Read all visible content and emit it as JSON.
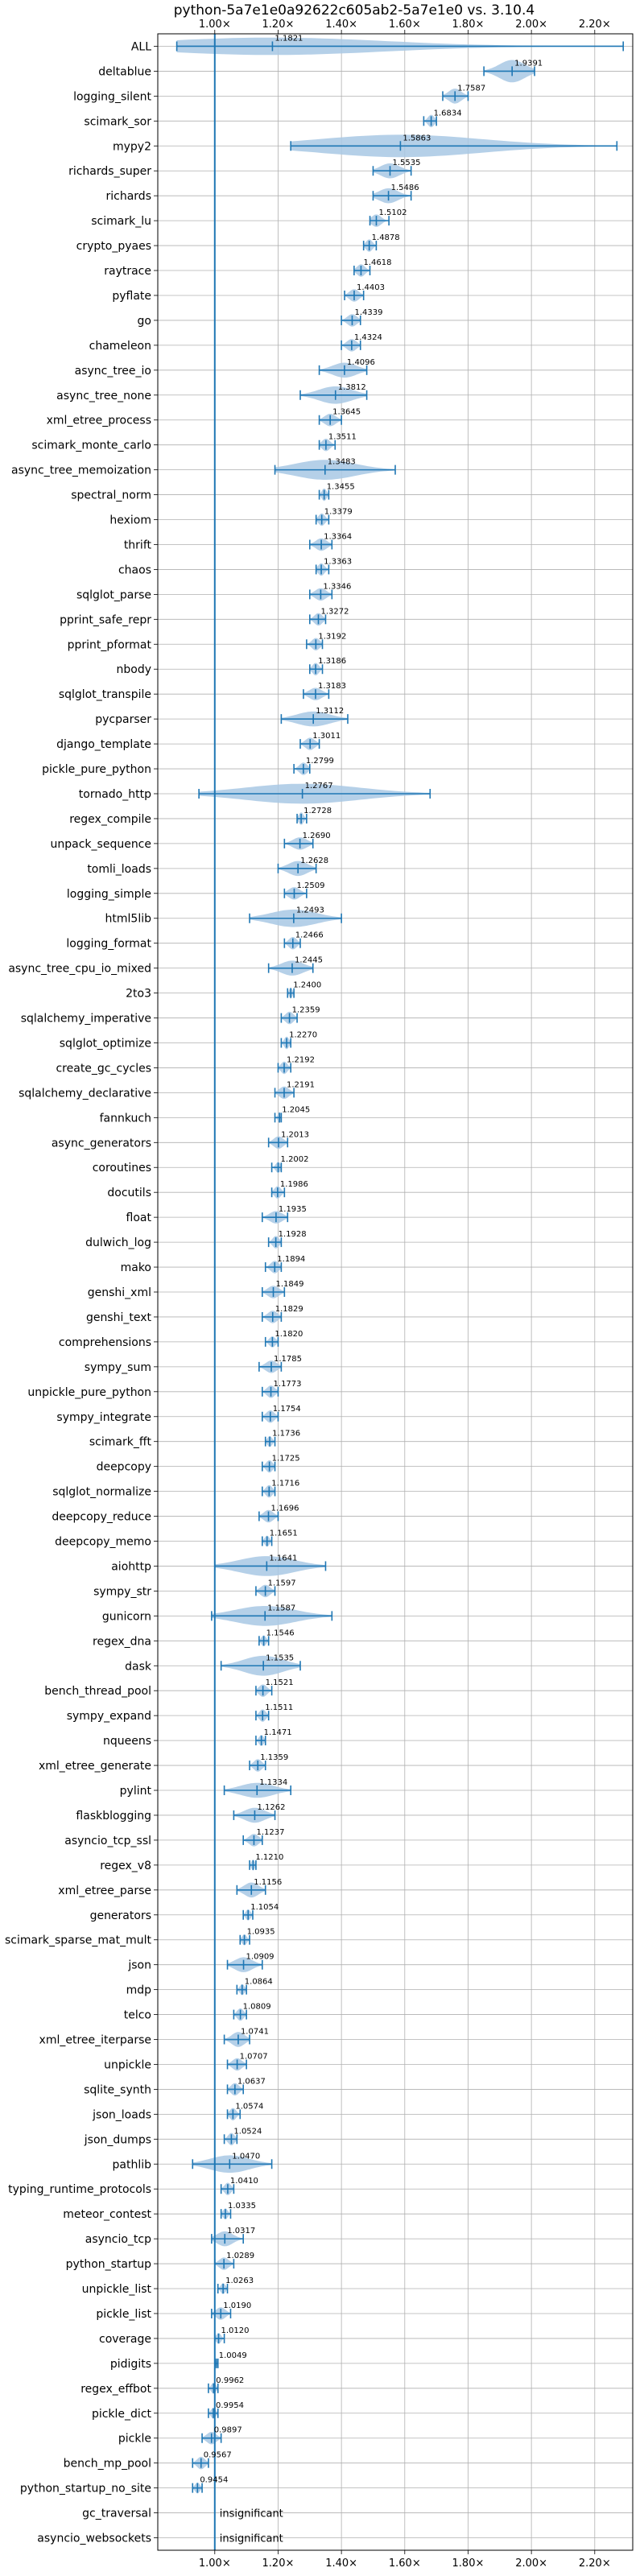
{
  "chart_data": {
    "type": "violin",
    "title": "python-5a7e1e0a92622c605ab2-5a7e1e0 vs. 3.10.4",
    "xlabel": "",
    "ylabel": "",
    "xlim": [
      0.82,
      2.32
    ],
    "x_ticks": [
      1.0,
      1.2,
      1.4,
      1.6,
      1.8,
      2.0,
      2.2
    ],
    "x_tick_labels": [
      "1.00×",
      "1.20×",
      "1.40×",
      "1.60×",
      "1.80×",
      "2.00×",
      "2.20×"
    ],
    "reference_line": 1.0,
    "grid": true,
    "colors": {
      "violin": "#a8c8e4",
      "line": "#1f77b4"
    },
    "benchmarks": [
      {
        "name": "ALL",
        "value": "1.1821",
        "min": 0.88,
        "max": 2.29,
        "mean": 1.1821,
        "width": 0.35
      },
      {
        "name": "deltablue",
        "value": "1.9391",
        "min": 1.85,
        "max": 2.01,
        "mean": 1.9391,
        "width": 0.45
      },
      {
        "name": "logging_silent",
        "value": "1.7587",
        "min": 1.72,
        "max": 1.8,
        "mean": 1.7587,
        "width": 0.3
      },
      {
        "name": "scimark_sor",
        "value": "1.6834",
        "min": 1.66,
        "max": 1.7,
        "mean": 1.6834,
        "width": 0.25
      },
      {
        "name": "mypy2",
        "value": "1.5863",
        "min": 1.24,
        "max": 2.27,
        "mean": 1.5863,
        "width": 0.45
      },
      {
        "name": "richards_super",
        "value": "1.5535",
        "min": 1.5,
        "max": 1.62,
        "mean": 1.5535,
        "width": 0.3
      },
      {
        "name": "richards",
        "value": "1.5486",
        "min": 1.5,
        "max": 1.62,
        "mean": 1.5486,
        "width": 0.3
      },
      {
        "name": "scimark_lu",
        "value": "1.5102",
        "min": 1.49,
        "max": 1.55,
        "mean": 1.5102,
        "width": 0.25
      },
      {
        "name": "crypto_pyaes",
        "value": "1.4878",
        "min": 1.47,
        "max": 1.51,
        "mean": 1.4878,
        "width": 0.25
      },
      {
        "name": "raytrace",
        "value": "1.4618",
        "min": 1.44,
        "max": 1.49,
        "mean": 1.4618,
        "width": 0.25
      },
      {
        "name": "pyflate",
        "value": "1.4403",
        "min": 1.41,
        "max": 1.47,
        "mean": 1.4403,
        "width": 0.25
      },
      {
        "name": "go",
        "value": "1.4339",
        "min": 1.4,
        "max": 1.46,
        "mean": 1.4339,
        "width": 0.25
      },
      {
        "name": "chameleon",
        "value": "1.4324",
        "min": 1.4,
        "max": 1.46,
        "mean": 1.4324,
        "width": 0.25
      },
      {
        "name": "async_tree_io",
        "value": "1.4096",
        "min": 1.33,
        "max": 1.48,
        "mean": 1.4096,
        "width": 0.3
      },
      {
        "name": "async_tree_none",
        "value": "1.3812",
        "min": 1.27,
        "max": 1.48,
        "mean": 1.3812,
        "width": 0.35
      },
      {
        "name": "xml_etree_process",
        "value": "1.3645",
        "min": 1.33,
        "max": 1.4,
        "mean": 1.3645,
        "width": 0.25
      },
      {
        "name": "scimark_monte_carlo",
        "value": "1.3511",
        "min": 1.33,
        "max": 1.38,
        "mean": 1.3511,
        "width": 0.25
      },
      {
        "name": "async_tree_memoization",
        "value": "1.3483",
        "min": 1.19,
        "max": 1.57,
        "mean": 1.3483,
        "width": 0.4
      },
      {
        "name": "spectral_norm",
        "value": "1.3455",
        "min": 1.33,
        "max": 1.36,
        "mean": 1.3455,
        "width": 0.25
      },
      {
        "name": "hexiom",
        "value": "1.3379",
        "min": 1.32,
        "max": 1.36,
        "mean": 1.3379,
        "width": 0.25
      },
      {
        "name": "thrift",
        "value": "1.3364",
        "min": 1.3,
        "max": 1.37,
        "mean": 1.3364,
        "width": 0.25
      },
      {
        "name": "chaos",
        "value": "1.3363",
        "min": 1.32,
        "max": 1.36,
        "mean": 1.3363,
        "width": 0.25
      },
      {
        "name": "sqlglot_parse",
        "value": "1.3346",
        "min": 1.3,
        "max": 1.37,
        "mean": 1.3346,
        "width": 0.25
      },
      {
        "name": "pprint_safe_repr",
        "value": "1.3272",
        "min": 1.3,
        "max": 1.35,
        "mean": 1.3272,
        "width": 0.25
      },
      {
        "name": "pprint_pformat",
        "value": "1.3192",
        "min": 1.29,
        "max": 1.34,
        "mean": 1.3192,
        "width": 0.25
      },
      {
        "name": "nbody",
        "value": "1.3186",
        "min": 1.3,
        "max": 1.34,
        "mean": 1.3186,
        "width": 0.25
      },
      {
        "name": "sqlglot_transpile",
        "value": "1.3183",
        "min": 1.28,
        "max": 1.36,
        "mean": 1.3183,
        "width": 0.25
      },
      {
        "name": "pycparser",
        "value": "1.3112",
        "min": 1.21,
        "max": 1.42,
        "mean": 1.3112,
        "width": 0.3
      },
      {
        "name": "django_template",
        "value": "1.3011",
        "min": 1.27,
        "max": 1.33,
        "mean": 1.3011,
        "width": 0.25
      },
      {
        "name": "pickle_pure_python",
        "value": "1.2799",
        "min": 1.25,
        "max": 1.3,
        "mean": 1.2799,
        "width": 0.25
      },
      {
        "name": "tornado_http",
        "value": "1.2767",
        "min": 0.95,
        "max": 1.68,
        "mean": 1.2767,
        "width": 0.4
      },
      {
        "name": "regex_compile",
        "value": "1.2728",
        "min": 1.26,
        "max": 1.29,
        "mean": 1.2728,
        "width": 0.25
      },
      {
        "name": "unpack_sequence",
        "value": "1.2690",
        "min": 1.22,
        "max": 1.31,
        "mean": 1.269,
        "width": 0.25
      },
      {
        "name": "tomli_loads",
        "value": "1.2628",
        "min": 1.2,
        "max": 1.32,
        "mean": 1.2628,
        "width": 0.3
      },
      {
        "name": "logging_simple",
        "value": "1.2509",
        "min": 1.22,
        "max": 1.29,
        "mean": 1.2509,
        "width": 0.25
      },
      {
        "name": "html5lib",
        "value": "1.2493",
        "min": 1.11,
        "max": 1.4,
        "mean": 1.2493,
        "width": 0.35
      },
      {
        "name": "logging_format",
        "value": "1.2466",
        "min": 1.22,
        "max": 1.27,
        "mean": 1.2466,
        "width": 0.25
      },
      {
        "name": "async_tree_cpu_io_mixed",
        "value": "1.2445",
        "min": 1.17,
        "max": 1.31,
        "mean": 1.2445,
        "width": 0.3
      },
      {
        "name": "2to3",
        "value": "1.2400",
        "min": 1.23,
        "max": 1.25,
        "mean": 1.24,
        "width": 0.22
      },
      {
        "name": "sqlalchemy_imperative",
        "value": "1.2359",
        "min": 1.21,
        "max": 1.26,
        "mean": 1.2359,
        "width": 0.25
      },
      {
        "name": "sqlglot_optimize",
        "value": "1.2270",
        "min": 1.21,
        "max": 1.24,
        "mean": 1.227,
        "width": 0.25
      },
      {
        "name": "create_gc_cycles",
        "value": "1.2192",
        "min": 1.2,
        "max": 1.24,
        "mean": 1.2192,
        "width": 0.25
      },
      {
        "name": "sqlalchemy_declarative",
        "value": "1.2191",
        "min": 1.19,
        "max": 1.25,
        "mean": 1.2191,
        "width": 0.25
      },
      {
        "name": "fannkuch",
        "value": "1.2045",
        "min": 1.19,
        "max": 1.21,
        "mean": 1.2045,
        "width": 0.22
      },
      {
        "name": "async_generators",
        "value": "1.2013",
        "min": 1.17,
        "max": 1.23,
        "mean": 1.2013,
        "width": 0.25
      },
      {
        "name": "coroutines",
        "value": "1.2002",
        "min": 1.18,
        "max": 1.21,
        "mean": 1.2002,
        "width": 0.22
      },
      {
        "name": "docutils",
        "value": "1.1986",
        "min": 1.18,
        "max": 1.22,
        "mean": 1.1986,
        "width": 0.25
      },
      {
        "name": "float",
        "value": "1.1935",
        "min": 1.15,
        "max": 1.23,
        "mean": 1.1935,
        "width": 0.25
      },
      {
        "name": "dulwich_log",
        "value": "1.1928",
        "min": 1.17,
        "max": 1.21,
        "mean": 1.1928,
        "width": 0.25
      },
      {
        "name": "mako",
        "value": "1.1894",
        "min": 1.16,
        "max": 1.21,
        "mean": 1.1894,
        "width": 0.25
      },
      {
        "name": "genshi_xml",
        "value": "1.1849",
        "min": 1.15,
        "max": 1.22,
        "mean": 1.1849,
        "width": 0.25
      },
      {
        "name": "genshi_text",
        "value": "1.1829",
        "min": 1.15,
        "max": 1.21,
        "mean": 1.1829,
        "width": 0.25
      },
      {
        "name": "comprehensions",
        "value": "1.1820",
        "min": 1.16,
        "max": 1.2,
        "mean": 1.182,
        "width": 0.22
      },
      {
        "name": "sympy_sum",
        "value": "1.1785",
        "min": 1.14,
        "max": 1.21,
        "mean": 1.1785,
        "width": 0.25
      },
      {
        "name": "unpickle_pure_python",
        "value": "1.1773",
        "min": 1.15,
        "max": 1.2,
        "mean": 1.1773,
        "width": 0.25
      },
      {
        "name": "sympy_integrate",
        "value": "1.1754",
        "min": 1.15,
        "max": 1.2,
        "mean": 1.1754,
        "width": 0.25
      },
      {
        "name": "scimark_fft",
        "value": "1.1736",
        "min": 1.16,
        "max": 1.19,
        "mean": 1.1736,
        "width": 0.22
      },
      {
        "name": "deepcopy",
        "value": "1.1725",
        "min": 1.15,
        "max": 1.19,
        "mean": 1.1725,
        "width": 0.25
      },
      {
        "name": "sqlglot_normalize",
        "value": "1.1716",
        "min": 1.15,
        "max": 1.19,
        "mean": 1.1716,
        "width": 0.25
      },
      {
        "name": "deepcopy_reduce",
        "value": "1.1696",
        "min": 1.14,
        "max": 1.2,
        "mean": 1.1696,
        "width": 0.25
      },
      {
        "name": "deepcopy_memo",
        "value": "1.1651",
        "min": 1.15,
        "max": 1.18,
        "mean": 1.1651,
        "width": 0.22
      },
      {
        "name": "aiohttp",
        "value": "1.1641",
        "min": 1.0,
        "max": 1.35,
        "mean": 1.1641,
        "width": 0.4
      },
      {
        "name": "sympy_str",
        "value": "1.1597",
        "min": 1.13,
        "max": 1.19,
        "mean": 1.1597,
        "width": 0.25
      },
      {
        "name": "gunicorn",
        "value": "1.1587",
        "min": 0.99,
        "max": 1.37,
        "mean": 1.1587,
        "width": 0.4
      },
      {
        "name": "regex_dna",
        "value": "1.1546",
        "min": 1.14,
        "max": 1.17,
        "mean": 1.1546,
        "width": 0.22
      },
      {
        "name": "dask",
        "value": "1.1535",
        "min": 1.02,
        "max": 1.27,
        "mean": 1.1535,
        "width": 0.4
      },
      {
        "name": "bench_thread_pool",
        "value": "1.1521",
        "min": 1.13,
        "max": 1.18,
        "mean": 1.1521,
        "width": 0.25
      },
      {
        "name": "sympy_expand",
        "value": "1.1511",
        "min": 1.13,
        "max": 1.17,
        "mean": 1.1511,
        "width": 0.25
      },
      {
        "name": "nqueens",
        "value": "1.1471",
        "min": 1.13,
        "max": 1.16,
        "mean": 1.1471,
        "width": 0.22
      },
      {
        "name": "xml_etree_generate",
        "value": "1.1359",
        "min": 1.11,
        "max": 1.16,
        "mean": 1.1359,
        "width": 0.25
      },
      {
        "name": "pylint",
        "value": "1.1334",
        "min": 1.03,
        "max": 1.24,
        "mean": 1.1334,
        "width": 0.3
      },
      {
        "name": "flaskblogging",
        "value": "1.1262",
        "min": 1.06,
        "max": 1.19,
        "mean": 1.1262,
        "width": 0.3
      },
      {
        "name": "asyncio_tcp_ssl",
        "value": "1.1237",
        "min": 1.09,
        "max": 1.15,
        "mean": 1.1237,
        "width": 0.25
      },
      {
        "name": "regex_v8",
        "value": "1.1210",
        "min": 1.11,
        "max": 1.13,
        "mean": 1.121,
        "width": 0.22
      },
      {
        "name": "xml_etree_parse",
        "value": "1.1156",
        "min": 1.07,
        "max": 1.16,
        "mean": 1.1156,
        "width": 0.3
      },
      {
        "name": "generators",
        "value": "1.1054",
        "min": 1.09,
        "max": 1.12,
        "mean": 1.1054,
        "width": 0.22
      },
      {
        "name": "scimark_sparse_mat_mult",
        "value": "1.0935",
        "min": 1.08,
        "max": 1.11,
        "mean": 1.0935,
        "width": 0.22
      },
      {
        "name": "json",
        "value": "1.0909",
        "min": 1.04,
        "max": 1.15,
        "mean": 1.0909,
        "width": 0.3
      },
      {
        "name": "mdp",
        "value": "1.0864",
        "min": 1.07,
        "max": 1.1,
        "mean": 1.0864,
        "width": 0.22
      },
      {
        "name": "telco",
        "value": "1.0809",
        "min": 1.06,
        "max": 1.1,
        "mean": 1.0809,
        "width": 0.25
      },
      {
        "name": "xml_etree_iterparse",
        "value": "1.0741",
        "min": 1.03,
        "max": 1.11,
        "mean": 1.0741,
        "width": 0.3
      },
      {
        "name": "unpickle",
        "value": "1.0707",
        "min": 1.04,
        "max": 1.1,
        "mean": 1.0707,
        "width": 0.25
      },
      {
        "name": "sqlite_synth",
        "value": "1.0637",
        "min": 1.04,
        "max": 1.09,
        "mean": 1.0637,
        "width": 0.25
      },
      {
        "name": "json_loads",
        "value": "1.0574",
        "min": 1.04,
        "max": 1.08,
        "mean": 1.0574,
        "width": 0.25
      },
      {
        "name": "json_dumps",
        "value": "1.0524",
        "min": 1.03,
        "max": 1.07,
        "mean": 1.0524,
        "width": 0.25
      },
      {
        "name": "pathlib",
        "value": "1.0470",
        "min": 0.93,
        "max": 1.18,
        "mean": 1.047,
        "width": 0.35
      },
      {
        "name": "typing_runtime_protocols",
        "value": "1.0410",
        "min": 1.02,
        "max": 1.06,
        "mean": 1.041,
        "width": 0.25
      },
      {
        "name": "meteor_contest",
        "value": "1.0335",
        "min": 1.02,
        "max": 1.05,
        "mean": 1.0335,
        "width": 0.22
      },
      {
        "name": "asyncio_tcp",
        "value": "1.0317",
        "min": 0.99,
        "max": 1.09,
        "mean": 1.0317,
        "width": 0.3
      },
      {
        "name": "python_startup",
        "value": "1.0289",
        "min": 1.0,
        "max": 1.06,
        "mean": 1.0289,
        "width": 0.25
      },
      {
        "name": "unpickle_list",
        "value": "1.0263",
        "min": 1.01,
        "max": 1.04,
        "mean": 1.0263,
        "width": 0.22
      },
      {
        "name": "pickle_list",
        "value": "1.0190",
        "min": 0.99,
        "max": 1.05,
        "mean": 1.019,
        "width": 0.25
      },
      {
        "name": "coverage",
        "value": "1.0120",
        "min": 1.0,
        "max": 1.03,
        "mean": 1.012,
        "width": 0.22
      },
      {
        "name": "pidigits",
        "value": "1.0049",
        "min": 1.0,
        "max": 1.01,
        "mean": 1.0049,
        "width": 0.2
      },
      {
        "name": "regex_effbot",
        "value": "0.9962",
        "min": 0.98,
        "max": 1.01,
        "mean": 0.9962,
        "width": 0.22
      },
      {
        "name": "pickle_dict",
        "value": "0.9954",
        "min": 0.98,
        "max": 1.01,
        "mean": 0.9954,
        "width": 0.22
      },
      {
        "name": "pickle",
        "value": "0.9897",
        "min": 0.96,
        "max": 1.02,
        "mean": 0.9897,
        "width": 0.25
      },
      {
        "name": "bench_mp_pool",
        "value": "0.9567",
        "min": 0.93,
        "max": 0.98,
        "mean": 0.9567,
        "width": 0.25
      },
      {
        "name": "python_startup_no_site",
        "value": "0.9454",
        "min": 0.93,
        "max": 0.96,
        "mean": 0.9454,
        "width": 0.22
      },
      {
        "name": "gc_traversal",
        "value": "insignificant",
        "insignificant": true
      },
      {
        "name": "asyncio_websockets",
        "value": "insignificant",
        "insignificant": true
      }
    ]
  }
}
